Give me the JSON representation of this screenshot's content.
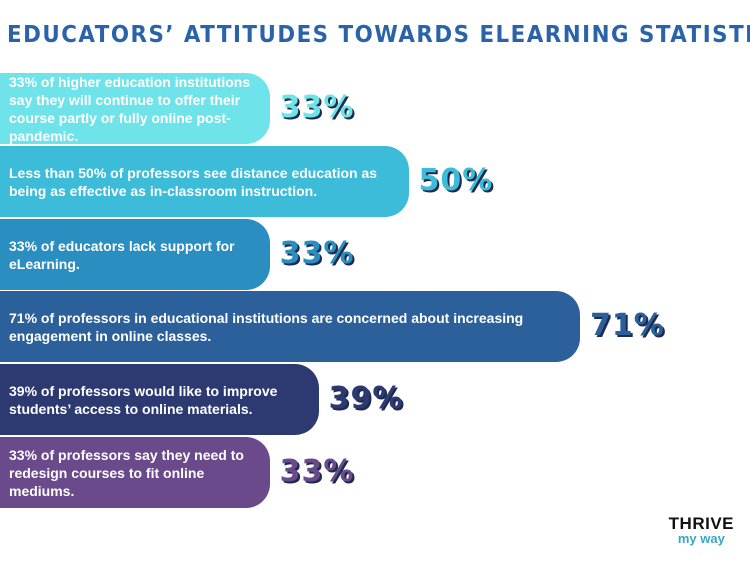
{
  "chart_data": {
    "type": "bar",
    "title": "EDUCATORS’ ATTITUDES TOWARDS ELEARNING STATISTICS",
    "categories": [
      "33% of higher education institutions say they will continue to offer their course partly or fully online post-pandemic.",
      "Less than 50% of professors see distance education as being as effective as in-classroom instruction.",
      "33% of educators lack support for eLearning.",
      "71% of professors in educational institutions are concerned about increasing engagement in online classes.",
      "39% of professors would like to improve students’ access to online materials.",
      "33% of professors say they need to redesign courses to fit online mediums."
    ],
    "values": [
      33,
      50,
      33,
      71,
      39,
      33
    ],
    "value_labels": [
      "33%",
      "50%",
      "33%",
      "71%",
      "39%",
      "33%"
    ],
    "colors": [
      "#6ee3ea",
      "#3dbcd9",
      "#2b8ec0",
      "#2c609b",
      "#2d3a72",
      "#6b4a8c"
    ]
  },
  "brand": {
    "line1": "THRIVE",
    "line2": "my way"
  }
}
